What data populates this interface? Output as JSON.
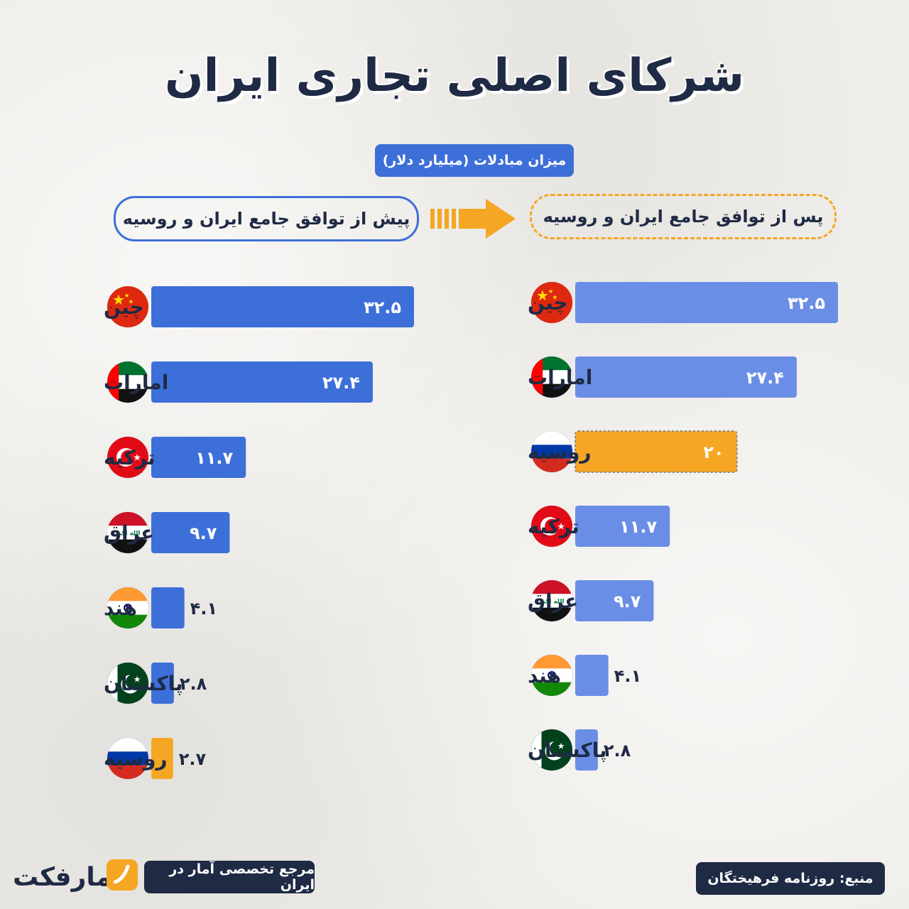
{
  "title": "شرکای اصلی تجاری ایران",
  "unit_label": "میزان مبادلات (میلیارد دلار)",
  "before_label": "پیش از توافق جامع ایران و روسیه",
  "after_label": "پس از توافق جامع ایران و روسیه",
  "colors": {
    "bar_before": "#3d6fd9",
    "bar_after": "#6a8ee6",
    "russia": "#f5a623",
    "text": "#1f2a44"
  },
  "chart_data": [
    {
      "type": "bar",
      "orientation": "horizontal",
      "panel": "before",
      "categories": [
        "چین",
        "امارات",
        "ترکیه",
        "عراق",
        "هند",
        "پاکستان",
        "روسیه"
      ],
      "flags": [
        "china-flag-icon",
        "uae-flag-icon",
        "turkey-flag-icon",
        "iraq-flag-icon",
        "india-flag-icon",
        "pakistan-flag-icon",
        "russia-flag-icon"
      ],
      "values": [
        32.5,
        27.4,
        11.7,
        9.7,
        4.1,
        2.8,
        2.7
      ],
      "value_labels": [
        "۳۲.۵",
        "۲۷.۴",
        "۱۱.۷",
        "۹.۷",
        "۴.۱",
        "۲.۸",
        "۲.۷"
      ],
      "highlight": "روسیه"
    },
    {
      "type": "bar",
      "orientation": "horizontal",
      "panel": "after",
      "categories": [
        "چین",
        "امارات",
        "روسیه",
        "ترکیه",
        "عراق",
        "هند",
        "پاکستان"
      ],
      "flags": [
        "china-flag-icon",
        "uae-flag-icon",
        "russia-flag-icon",
        "turkey-flag-icon",
        "iraq-flag-icon",
        "india-flag-icon",
        "pakistan-flag-icon"
      ],
      "values": [
        32.5,
        27.4,
        20,
        11.7,
        9.7,
        4.1,
        2.8
      ],
      "value_labels": [
        "۳۲.۵",
        "۲۷.۴",
        "۲۰",
        "۱۱.۷",
        "۹.۷",
        "۴.۱",
        "۲.۸"
      ],
      "highlight": "روسیه"
    }
  ],
  "footer": {
    "source": "منبع: روزنامه فرهیختگان",
    "reference": "مرجع تخصصی آمار در ایران",
    "brand": "آمارفکت"
  }
}
